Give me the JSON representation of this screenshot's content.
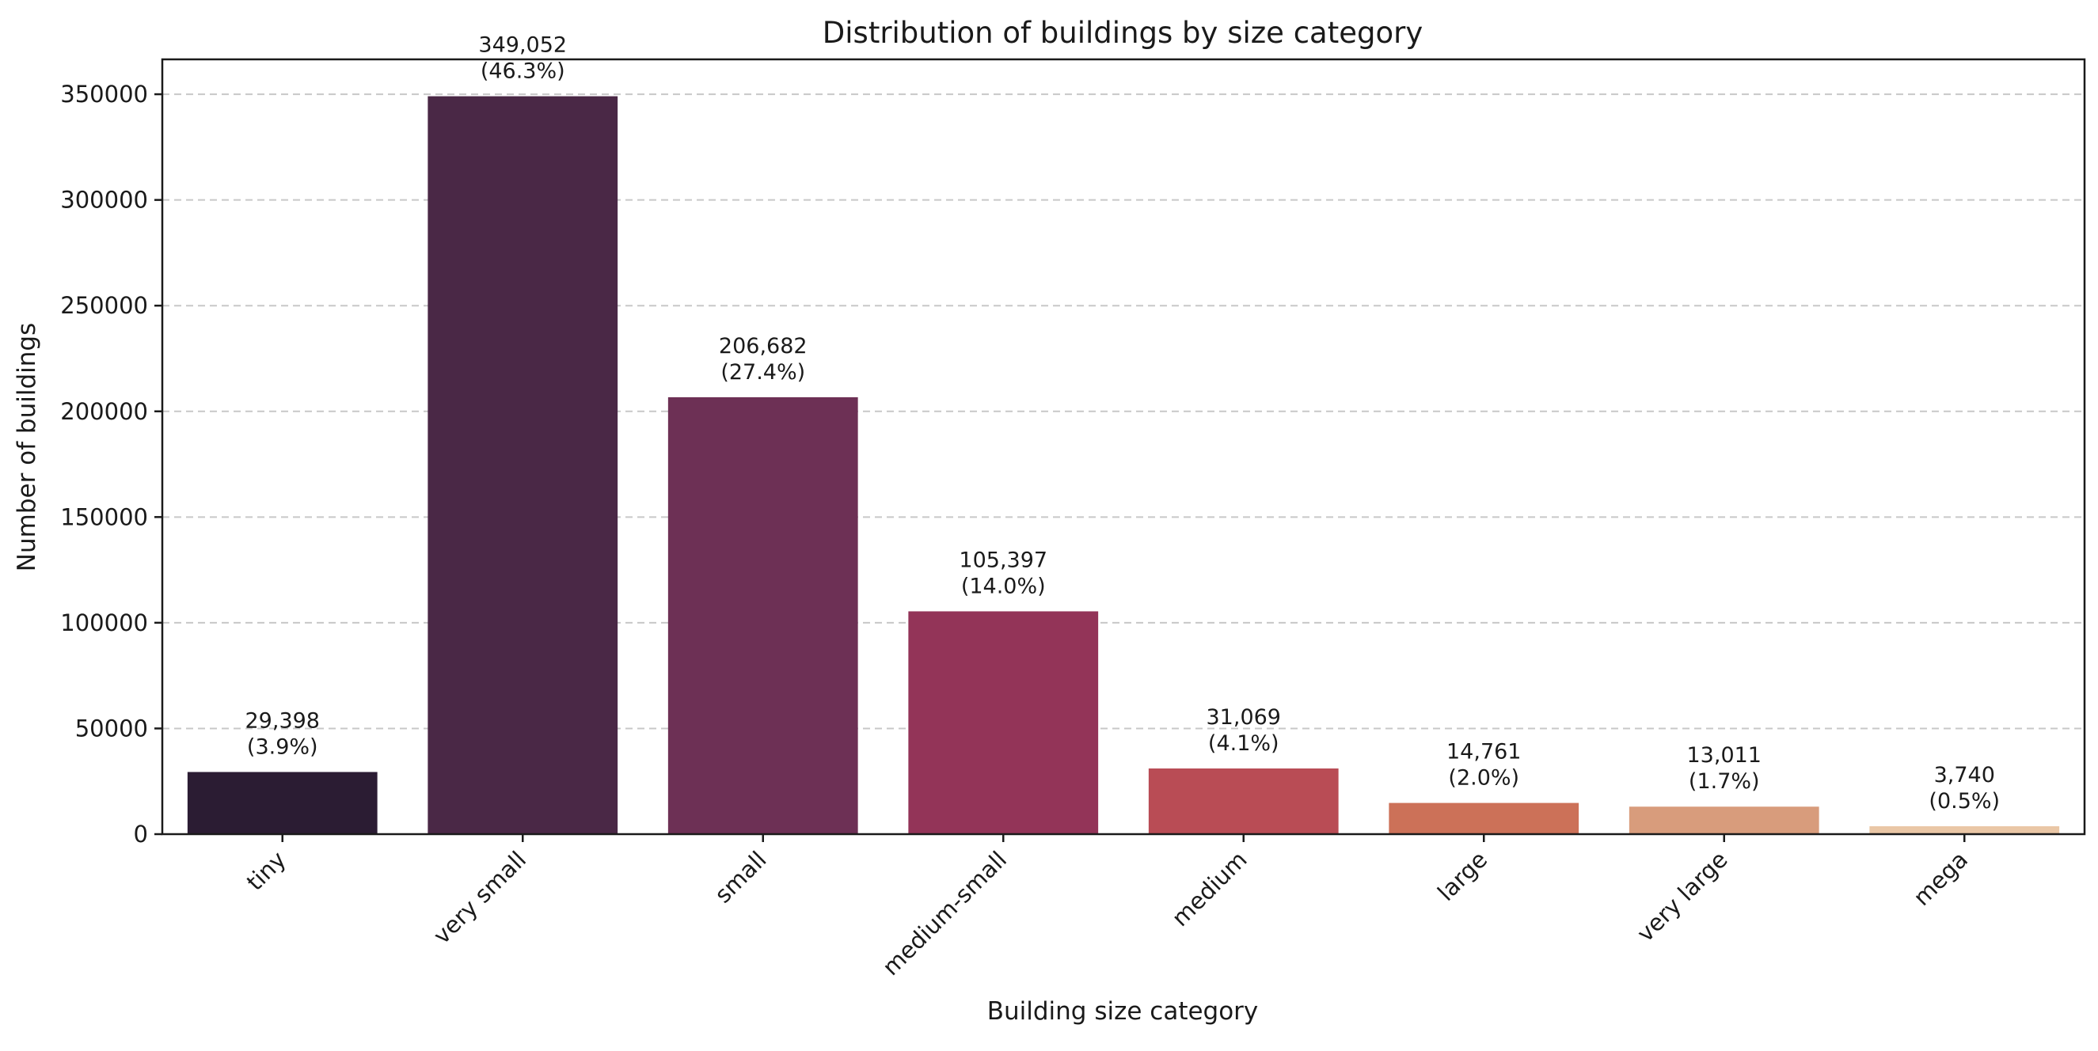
{
  "chart_data": {
    "type": "bar",
    "title": "Distribution of buildings by size category",
    "xlabel": "Building size category",
    "ylabel": "Number of buildings",
    "categories": [
      "tiny",
      "very small",
      "small",
      "medium-small",
      "medium",
      "large",
      "very large",
      "mega"
    ],
    "values": [
      29398,
      349052,
      206682,
      105397,
      31069,
      14761,
      13011,
      3740
    ],
    "value_labels": [
      "29,398",
      "349,052",
      "206,682",
      "105,397",
      "31,069",
      "14,761",
      "13,011",
      "3,740"
    ],
    "percent_labels": [
      "(3.9%)",
      "(46.3%)",
      "(27.4%)",
      "(14.0%)",
      "(4.1%)",
      "(2.0%)",
      "(1.7%)",
      "(0.5%)"
    ],
    "colors": [
      "#2b1c33",
      "#4a2846",
      "#6d3055",
      "#933458",
      "#b94c55",
      "#cc7158",
      "#d89c7c",
      "#eac7a6"
    ],
    "ylim": [
      0,
      366500
    ],
    "yticks": [
      0,
      50000,
      100000,
      150000,
      200000,
      250000,
      300000,
      350000
    ],
    "ytick_labels": [
      "0",
      "50000",
      "100000",
      "150000",
      "200000",
      "250000",
      "300000",
      "350000"
    ],
    "grid": true,
    "legend": "none"
  }
}
